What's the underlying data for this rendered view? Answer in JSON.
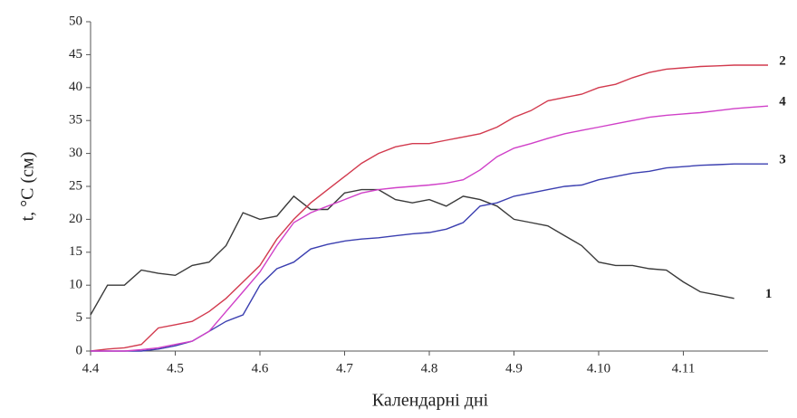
{
  "chart_data": {
    "type": "line",
    "y_label": "t, °C (см)",
    "x_label": "Календарні дні",
    "categories": [
      "4.4",
      null,
      null,
      null,
      null,
      "4.5",
      null,
      null,
      null,
      null,
      "4.6",
      null,
      null,
      null,
      null,
      "4.7",
      null,
      null,
      null,
      null,
      "4.8",
      null,
      null,
      null,
      null,
      "4.9",
      null,
      null,
      null,
      null,
      "4.10",
      null,
      null,
      null,
      null,
      "4.11",
      null,
      null,
      null,
      null,
      null
    ],
    "ylim": [
      0,
      50
    ],
    "yticks": [
      0,
      5,
      10,
      15,
      20,
      25,
      30,
      35,
      40,
      45,
      50
    ],
    "grid": false,
    "series": [
      {
        "name": "1",
        "color": "#3a3a3a",
        "values": [
          5.5,
          10,
          10,
          12.3,
          11.8,
          11.5,
          13,
          13.5,
          16,
          21,
          20,
          20.5,
          23.5,
          21.5,
          21.5,
          24,
          24.5,
          24.5,
          23,
          22.5,
          23,
          22,
          23.5,
          23,
          22,
          20,
          19.5,
          19,
          17.5,
          16,
          13.5,
          13,
          13,
          12.5,
          12.3,
          10.5,
          9,
          8.5,
          8,
          null,
          null
        ]
      },
      {
        "name": "2",
        "color": "#d23a4e",
        "values": [
          0,
          0.3,
          0.5,
          1,
          3.5,
          4,
          4.5,
          6,
          8,
          10.5,
          13,
          17,
          20,
          22.5,
          24.5,
          26.5,
          28.5,
          30,
          31,
          31.5,
          31.5,
          32,
          32.5,
          33,
          34,
          35.5,
          36.5,
          38,
          38.5,
          39,
          40,
          40.5,
          41.5,
          42.3,
          42.8,
          43,
          43.2,
          43.3,
          43.4,
          43.4,
          43.4
        ]
      },
      {
        "name": "3",
        "color": "#3b3fb0",
        "values": [
          0,
          0,
          0,
          0,
          0.3,
          0.8,
          1.5,
          3,
          4.5,
          5.5,
          10,
          12.5,
          13.5,
          15.5,
          16.2,
          16.7,
          17,
          17.2,
          17.5,
          17.8,
          18,
          18.5,
          19.5,
          22,
          22.5,
          23.5,
          24,
          24.5,
          25,
          25.2,
          26,
          26.5,
          27,
          27.3,
          27.8,
          28,
          28.2,
          28.3,
          28.4,
          28.4,
          28.4
        ]
      },
      {
        "name": "4",
        "color": "#d040c8",
        "values": [
          0,
          0,
          0,
          0.2,
          0.5,
          1,
          1.5,
          3,
          6,
          9,
          12,
          16,
          19.5,
          21,
          22,
          23,
          24,
          24.5,
          24.8,
          25,
          25.2,
          25.5,
          26,
          27.5,
          29.5,
          30.8,
          31.5,
          32.3,
          33,
          33.5,
          34,
          34.5,
          35,
          35.5,
          35.8,
          36,
          36.2,
          36.5,
          36.8,
          37,
          37.2
        ]
      }
    ]
  }
}
